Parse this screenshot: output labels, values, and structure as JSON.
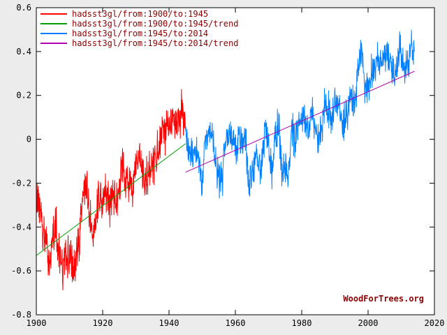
{
  "chart_data": {
    "type": "line",
    "title": "",
    "xlabel": "",
    "ylabel": "",
    "watermark": "WoodForTrees.org",
    "xlim": [
      1900,
      2020
    ],
    "ylim": [
      -0.8,
      0.6
    ],
    "xticks": [
      1900,
      1920,
      1940,
      1960,
      1980,
      2000,
      2020
    ],
    "yticks": [
      -0.8,
      -0.6,
      -0.4,
      -0.2,
      0,
      0.2,
      0.4,
      0.6
    ],
    "grid": false,
    "legend_position": "top-left",
    "colors": {
      "margin_background": "#ececec",
      "plot_background": "#ffffff",
      "axis": "#000000",
      "legend_text": "#8b0000"
    },
    "series": [
      {
        "name": "hadsst3gl/from:1900/to:1945",
        "color": "#ff0000",
        "kind": "monthly",
        "x_start": 1900,
        "x_end": 1945,
        "noise_amplitude": 0.12,
        "noise_seed": 13,
        "annual_values": [
          -0.25,
          -0.3,
          -0.42,
          -0.5,
          -0.55,
          -0.45,
          -0.4,
          -0.55,
          -0.58,
          -0.55,
          -0.52,
          -0.58,
          -0.55,
          -0.45,
          -0.25,
          -0.2,
          -0.35,
          -0.45,
          -0.32,
          -0.25,
          -0.28,
          -0.25,
          -0.3,
          -0.25,
          -0.28,
          -0.2,
          -0.12,
          -0.18,
          -0.2,
          -0.28,
          -0.12,
          -0.1,
          -0.15,
          -0.2,
          -0.14,
          -0.12,
          -0.1,
          -0.03,
          0.02,
          0.02,
          0.05,
          0.12,
          0.08,
          0.08,
          0.15,
          0.05
        ]
      },
      {
        "name": "hadsst3gl/from:1900/to:1945/trend",
        "color": "#00a000",
        "kind": "trend",
        "x": [
          1900,
          1945
        ],
        "y": [
          -0.53,
          -0.02
        ]
      },
      {
        "name": "hadsst3gl/from:1945/to:2014",
        "color": "#0080ff",
        "kind": "monthly",
        "x_start": 1945,
        "x_end": 2014,
        "noise_amplitude": 0.1,
        "noise_seed": 29,
        "annual_values": [
          0.02,
          -0.05,
          -0.08,
          -0.05,
          -0.1,
          -0.18,
          -0.03,
          0.02,
          0.05,
          -0.12,
          -0.18,
          -0.2,
          0.02,
          0.05,
          0.0,
          -0.03,
          0.0,
          -0.02,
          0.02,
          -0.22,
          -0.15,
          -0.1,
          -0.12,
          -0.1,
          0.05,
          0.0,
          -0.15,
          0.02,
          0.08,
          -0.15,
          -0.12,
          -0.15,
          0.05,
          -0.02,
          0.06,
          0.1,
          0.1,
          0.03,
          0.15,
          0.02,
          0.02,
          0.06,
          0.18,
          0.15,
          0.08,
          0.18,
          0.18,
          0.05,
          0.08,
          0.13,
          0.22,
          0.15,
          0.3,
          0.42,
          0.22,
          0.22,
          0.3,
          0.33,
          0.38,
          0.35,
          0.38,
          0.38,
          0.32,
          0.28,
          0.38,
          0.42,
          0.3,
          0.35,
          0.42,
          0.4
        ]
      },
      {
        "name": "hadsst3gl/from:1945/to:2014/trend",
        "color": "#b000b0",
        "kind": "trend",
        "x": [
          1945,
          2014
        ],
        "y": [
          -0.15,
          0.31
        ]
      }
    ]
  }
}
